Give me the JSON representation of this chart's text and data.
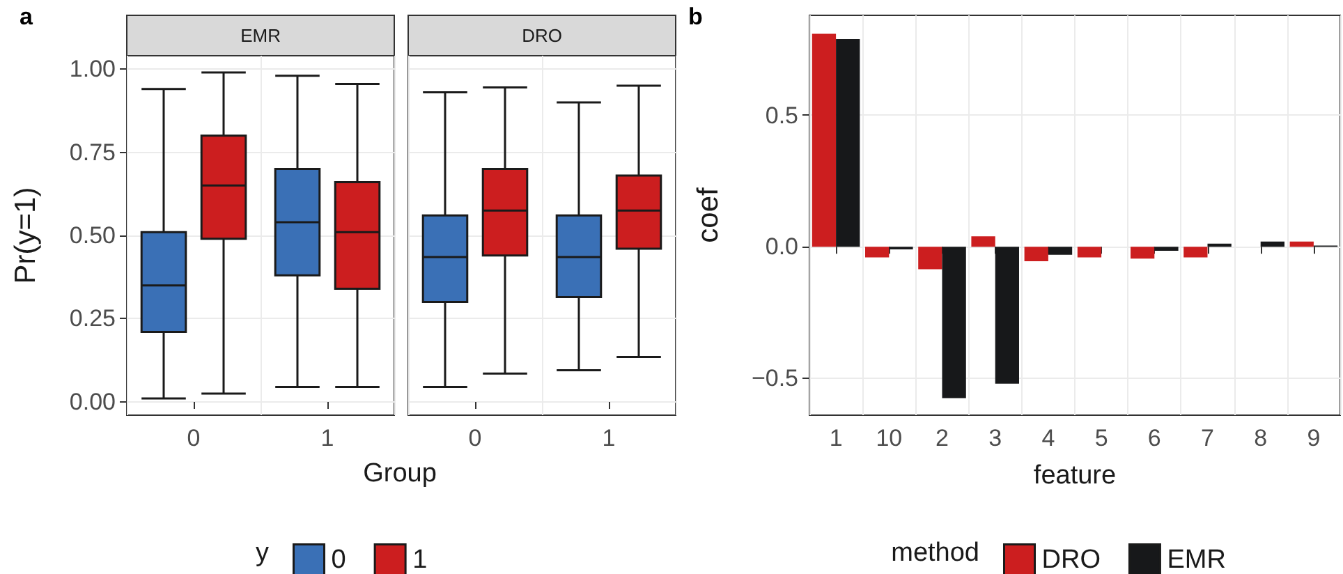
{
  "chart_data": [
    {
      "type": "box",
      "title": "EMR",
      "ylabel": "Pr(y=1)",
      "xlabel": "Group",
      "legend_title": "y",
      "legend": "bottom",
      "annotations": [
        "a"
      ],
      "grid": true,
      "categories": [
        "0",
        "1"
      ],
      "ylim": [
        -0.04,
        1.04
      ],
      "yticks": [
        {
          "value": 0,
          "label": "0.00"
        },
        {
          "value": 0.25,
          "label": "0.25"
        },
        {
          "value": 0.5,
          "label": "0.50"
        },
        {
          "value": 0.75,
          "label": "0.75"
        },
        {
          "value": 1,
          "label": "1.00"
        }
      ],
      "series": [
        {
          "name": "0",
          "color": "#3a70b6",
          "boxes": [
            {
              "low": 0.01,
              "q1": 0.21,
              "median": 0.35,
              "q3": 0.51,
              "high": 0.94
            },
            {
              "low": 0.045,
              "q1": 0.38,
              "median": 0.54,
              "q3": 0.7,
              "high": 0.98
            }
          ]
        },
        {
          "name": "1",
          "color": "#cc1e1f",
          "boxes": [
            {
              "low": 0.025,
              "q1": 0.49,
              "median": 0.65,
              "q3": 0.8,
              "high": 0.99
            },
            {
              "low": 0.045,
              "q1": 0.34,
              "median": 0.51,
              "q3": 0.66,
              "high": 0.955
            }
          ]
        }
      ]
    },
    {
      "type": "box",
      "title": "DRO",
      "tick_labels": "x",
      "grid": true,
      "categories": [
        "0",
        "1"
      ],
      "ylim": [
        -0.04,
        1.04
      ],
      "yticks": [
        0,
        0.25,
        0.5,
        0.75,
        1
      ],
      "series": [
        {
          "color": "#3a70b6",
          "boxes": [
            {
              "low": 0.045,
              "q1": 0.3,
              "median": 0.435,
              "q3": 0.56,
              "high": 0.93
            },
            {
              "low": 0.095,
              "q1": 0.315,
              "median": 0.435,
              "q3": 0.56,
              "high": 0.9
            }
          ]
        },
        {
          "color": "#cc1e1f",
          "boxes": [
            {
              "low": 0.085,
              "q1": 0.44,
              "median": 0.575,
              "q3": 0.7,
              "high": 0.945
            },
            {
              "low": 0.135,
              "q1": 0.46,
              "median": 0.575,
              "q3": 0.68,
              "high": 0.95
            }
          ]
        }
      ]
    },
    {
      "type": "bar",
      "xlabel": "feature",
      "ylabel": "coef",
      "legend_title": "method",
      "legend": "bottom",
      "annotations": [
        "b"
      ],
      "grid": true,
      "categories": [
        "1",
        "10",
        "2",
        "3",
        "4",
        "5",
        "6",
        "7",
        "8",
        "9"
      ],
      "ylim": [
        -0.64,
        0.88
      ],
      "yticks": [
        {
          "value": -0.5,
          "label": "−0.5"
        },
        {
          "value": 0,
          "label": "0.0"
        },
        {
          "value": 0.5,
          "label": "0.5"
        }
      ],
      "series": [
        {
          "name": "DRO",
          "color": "#cc1e1f",
          "values": [
            0.81,
            -0.04,
            -0.085,
            0.04,
            -0.055,
            -0.04,
            -0.045,
            -0.04,
            0,
            0.02
          ]
        },
        {
          "name": "EMR",
          "color": "#17181a",
          "values": [
            0.79,
            -0.01,
            -0.575,
            -0.52,
            -0.03,
            0,
            -0.015,
            0.012,
            0.02,
            0.005
          ]
        }
      ]
    }
  ]
}
